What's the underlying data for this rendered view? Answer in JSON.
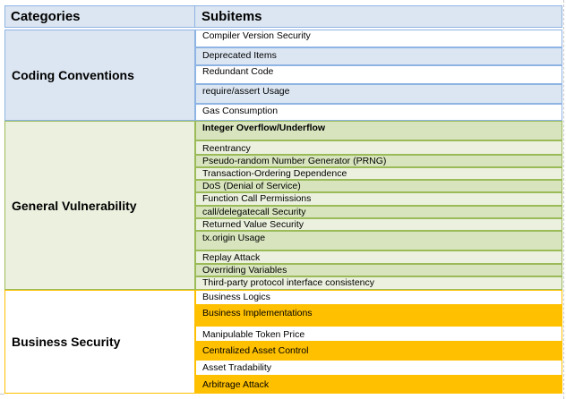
{
  "headers": {
    "categories": "Categories",
    "subitems": "Subitems"
  },
  "categories": [
    {
      "name": "Coding Conventions",
      "items": [
        "Compiler Version Security",
        "Deprecated Items",
        "Redundant Code",
        "require/assert Usage",
        "Gas Consumption"
      ]
    },
    {
      "name": "General Vulnerability",
      "items": [
        "Integer Overflow/Underflow",
        "Reentrancy",
        "Pseudo-random Number Generator (PRNG)",
        "Transaction-Ordering Dependence",
        "DoS (Denial of Service)",
        "Function Call Permissions",
        "call/delegatecall Security",
        "Returned Value Security",
        "tx.origin Usage",
        "Replay Attack",
        "Overriding Variables",
        "Third-party protocol interface consistency"
      ]
    },
    {
      "name": "Business Security",
      "items": [
        "Business Logics",
        "Business Implementations",
        "Manipulable Token Price",
        "Centralized Asset Control",
        "Asset Tradability",
        "Arbitrage Attack"
      ]
    }
  ],
  "colors": {
    "header_fill": "#dce6f2",
    "coding_fill": "#dce6f2",
    "coding_border": "#8eb4e3",
    "general_fill": "#d7e4bd",
    "general_light": "#ebf1de",
    "general_border": "#9bbb59",
    "business_accent": "#ffc000",
    "business_white": "#ffffff"
  }
}
